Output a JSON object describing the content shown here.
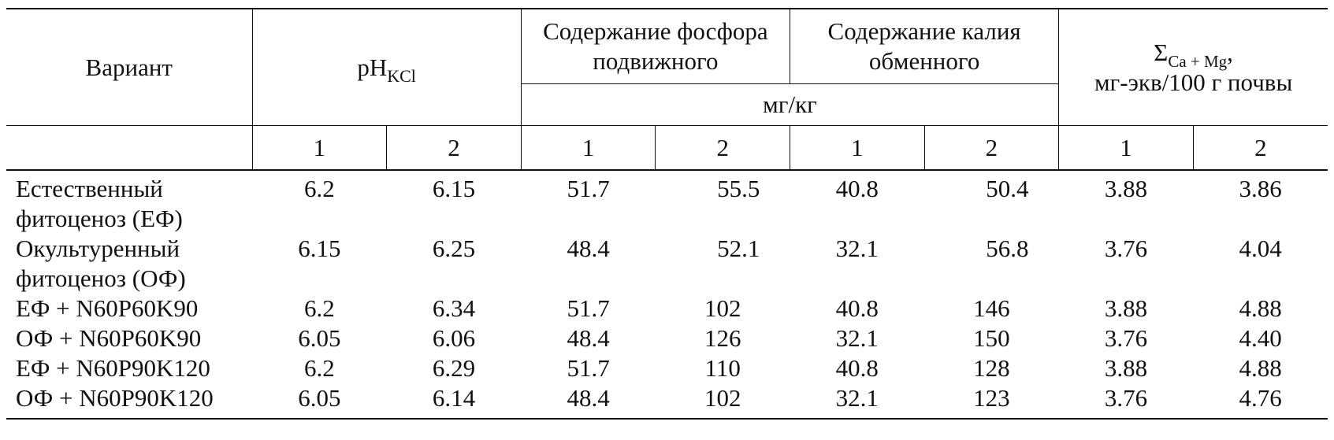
{
  "table": {
    "header": {
      "variant": "Вариант",
      "ph_main": "pH",
      "ph_sub": "KCl",
      "phosphorus": "Содержание фосфора подвижного",
      "potassium": "Содержание калия обменного",
      "units_mgkg": "мг/кг",
      "sum_symbol": "Σ",
      "sum_sub": "Ca + Mg",
      "sum_comma": ",",
      "sum_units": "мг-экв/100 г почвы",
      "sub_labels": [
        "1",
        "2",
        "1",
        "2",
        "1",
        "2",
        "1",
        "2"
      ]
    },
    "rows": [
      {
        "label": "Естественный фитоценоз (ЕФ)",
        "values": [
          "6.2",
          "6.15",
          "51.7",
          "55.5",
          "40.8",
          "50.4",
          "3.88",
          "3.86"
        ]
      },
      {
        "label": "Окультуренный фитоценоз (ОФ)",
        "values": [
          "6.15",
          "6.25",
          "48.4",
          "52.1",
          "32.1",
          "56.8",
          "3.76",
          "4.04"
        ]
      },
      {
        "label": "ЕФ + N60P60K90",
        "values": [
          "6.2",
          "6.34",
          "51.7",
          "102",
          "40.8",
          "146",
          "3.88",
          "4.88"
        ]
      },
      {
        "label": "ОФ + N60P60K90",
        "values": [
          "6.05",
          "6.06",
          "48.4",
          "126",
          "32.1",
          "150",
          "3.76",
          "4.40"
        ]
      },
      {
        "label": "ЕФ + N60P90K120",
        "values": [
          "6.2",
          "6.29",
          "51.7",
          "110",
          "40.8",
          "128",
          "3.88",
          "4.88"
        ]
      },
      {
        "label": "ОФ + N60P90K120",
        "values": [
          "6.05",
          "6.14",
          "48.4",
          "102",
          "32.1",
          "123",
          "3.76",
          "4.76"
        ]
      }
    ]
  }
}
